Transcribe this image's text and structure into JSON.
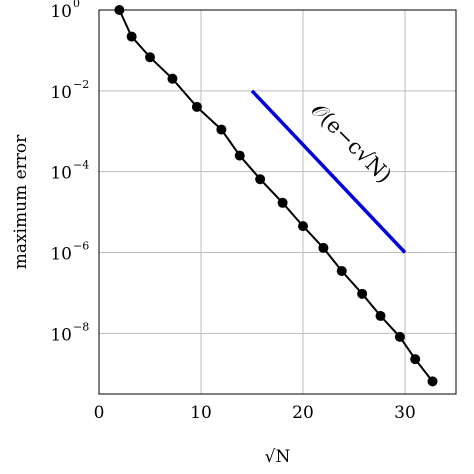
{
  "chart_data": {
    "type": "line",
    "xlabel": "√N",
    "ylabel": "maximum error",
    "xlim": [
      0,
      35
    ],
    "ylim_log10": [
      -9.5,
      0
    ],
    "yscale": "log",
    "grid": true,
    "x_ticks": [
      0,
      10,
      20,
      30
    ],
    "y_ticks": [
      {
        "base": "10",
        "exp": "0",
        "value": 1
      },
      {
        "base": "10",
        "exp": "−2",
        "value": 0.01
      },
      {
        "base": "10",
        "exp": "−4",
        "value": 0.0001
      },
      {
        "base": "10",
        "exp": "−6",
        "value": 1e-06
      },
      {
        "base": "10",
        "exp": "−8",
        "value": 1e-08
      }
    ],
    "series": [
      {
        "color": "#000000",
        "marker": "circle",
        "x": [
          2,
          3.2,
          5,
          7.2,
          9.6,
          12,
          13.8,
          15.8,
          18,
          20,
          22,
          23.8,
          25.8,
          27.6,
          29.5,
          31,
          32.7
        ],
        "y": [
          1,
          0.22,
          0.068,
          0.02,
          0.004,
          0.0011,
          0.00025,
          6.5e-05,
          1.7e-05,
          4.5e-06,
          1.3e-06,
          3.5e-07,
          9.5e-08,
          2.7e-08,
          8.2e-09,
          2.3e-09,
          6.5e-10
        ]
      },
      {
        "color": "#0000dd",
        "marker": "none",
        "x": [
          15,
          30
        ],
        "y": [
          0.01,
          1e-06
        ]
      }
    ],
    "annotation": {
      "text": "𝒪(e−c√N)",
      "rotation_deg": 45
    }
  }
}
